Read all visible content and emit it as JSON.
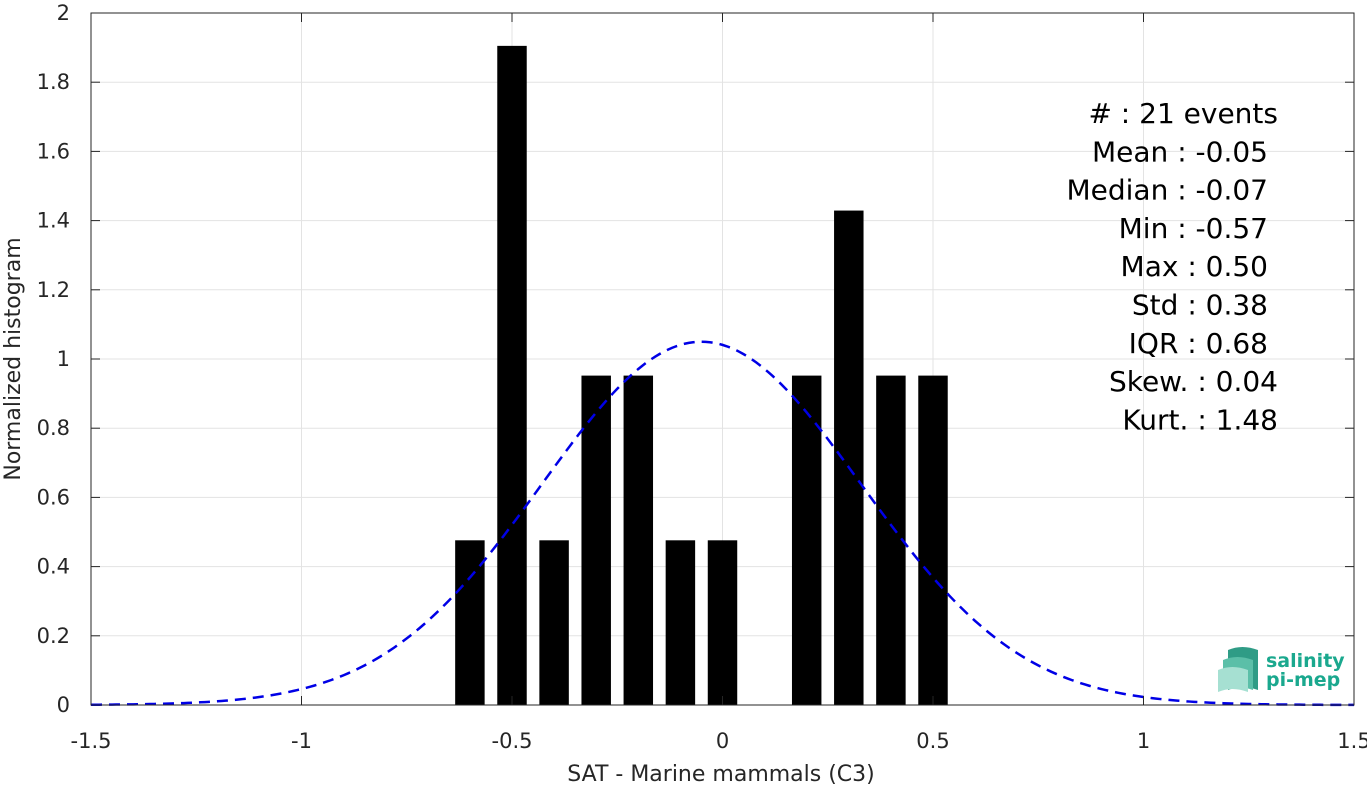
{
  "chart_data": {
    "type": "bar",
    "title": "",
    "xlabel": "SAT - Marine mammals (C3)",
    "ylabel": "Normalized histogram",
    "xlim": [
      -1.5,
      1.5
    ],
    "ylim": [
      0,
      2
    ],
    "xticks": [
      -1.5,
      -1,
      -0.5,
      0,
      0.5,
      1,
      1.5
    ],
    "yticks": [
      0,
      0.2,
      0.4,
      0.6,
      0.8,
      1,
      1.2,
      1.4,
      1.6,
      1.8,
      2
    ],
    "xtick_labels": [
      "-1.5",
      "-1",
      "-0.5",
      "0",
      "0.5",
      "1",
      "1.5"
    ],
    "ytick_labels": [
      "0",
      "0.2",
      "0.4",
      "0.6",
      "0.8",
      "1",
      "1.2",
      "1.4",
      "1.6",
      "1.8",
      "2"
    ],
    "grid": true,
    "bar_width": 0.07,
    "series": [
      {
        "type": "bar",
        "color": "#000000",
        "x": [
          -0.6,
          -0.5,
          -0.4,
          -0.3,
          -0.2,
          -0.1,
          0.0,
          0.2,
          0.3,
          0.4,
          0.5
        ],
        "values": [
          0.476,
          1.905,
          0.476,
          0.952,
          0.952,
          0.476,
          0.476,
          0.952,
          1.429,
          0.952,
          0.952
        ]
      },
      {
        "type": "line",
        "style": "dashed",
        "color": "#0000e6",
        "mean": -0.05,
        "std": 0.38,
        "x_range": [
          -1.5,
          1.5
        ]
      }
    ],
    "annotations": [
      "#  : 21 events",
      "Mean : -0.05",
      "Median : -0.07",
      "Min : -0.57",
      "Max : 0.50",
      "Std : 0.38",
      "IQR : 0.68",
      "Skew. : 0.04",
      "Kurt. : 1.48"
    ]
  },
  "logo": {
    "line1": "salinity",
    "line2": "pi-mep"
  }
}
